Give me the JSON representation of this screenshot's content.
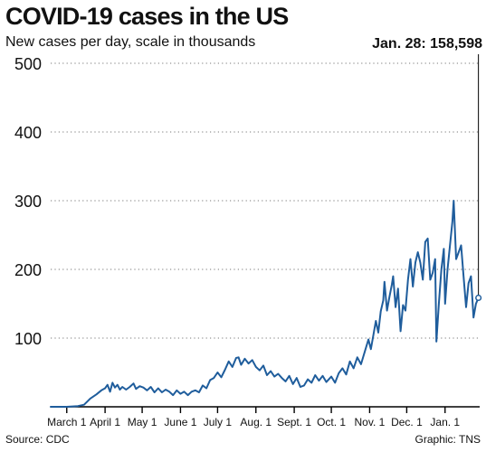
{
  "header": {
    "title": "COVID-19 cases in the US",
    "subtitle": "New cases per day, scale in thousands",
    "callout": "Jan. 28: 158,598"
  },
  "footer": {
    "source": "Source: CDC",
    "credit": "Graphic: TNS"
  },
  "colors": {
    "line": "#1f5d9c",
    "grid": "#777777",
    "axis": "#000000",
    "text": "#111111"
  },
  "chart_data": {
    "type": "line",
    "title": "COVID-19 cases in the US",
    "subtitle": "New cases per day, scale in thousands",
    "xlabel": "",
    "ylabel": "",
    "ylim": [
      0,
      500
    ],
    "xlim": [
      "2020-02-17",
      "2021-01-29"
    ],
    "grid": true,
    "yticks": [
      "100",
      "200",
      "300",
      "400",
      "500"
    ],
    "xticks": [
      {
        "label": "March 1",
        "date": "2020-03-01"
      },
      {
        "label": "April 1",
        "date": "2020-04-01"
      },
      {
        "label": "May 1",
        "date": "2020-05-01"
      },
      {
        "label": "June 1",
        "date": "2020-06-01"
      },
      {
        "label": "July 1",
        "date": "2020-07-01"
      },
      {
        "label": "Aug. 1",
        "date": "2020-08-01"
      },
      {
        "label": "Sept. 1",
        "date": "2020-09-01"
      },
      {
        "label": "Oct. 1",
        "date": "2020-10-01"
      },
      {
        "label": "Nov. 1",
        "date": "2020-11-01"
      },
      {
        "label": "Dec. 1",
        "date": "2020-12-01"
      },
      {
        "label": "Jan. 1",
        "date": "2021-01-01"
      }
    ],
    "series": [
      {
        "name": "",
        "points": [
          [
            "2020-02-17",
            0
          ],
          [
            "2020-03-01",
            0
          ],
          [
            "2020-03-10",
            1
          ],
          [
            "2020-03-15",
            3
          ],
          [
            "2020-03-20",
            12
          ],
          [
            "2020-03-25",
            18
          ],
          [
            "2020-03-29",
            24
          ],
          [
            "2020-04-01",
            27
          ],
          [
            "2020-04-03",
            32
          ],
          [
            "2020-04-05",
            22
          ],
          [
            "2020-04-07",
            35
          ],
          [
            "2020-04-09",
            28
          ],
          [
            "2020-04-11",
            32
          ],
          [
            "2020-04-13",
            25
          ],
          [
            "2020-04-15",
            29
          ],
          [
            "2020-04-18",
            25
          ],
          [
            "2020-04-21",
            29
          ],
          [
            "2020-04-24",
            34
          ],
          [
            "2020-04-26",
            26
          ],
          [
            "2020-04-29",
            30
          ],
          [
            "2020-05-02",
            28
          ],
          [
            "2020-05-05",
            24
          ],
          [
            "2020-05-08",
            29
          ],
          [
            "2020-05-11",
            21
          ],
          [
            "2020-05-14",
            27
          ],
          [
            "2020-05-17",
            21
          ],
          [
            "2020-05-20",
            25
          ],
          [
            "2020-05-23",
            22
          ],
          [
            "2020-05-26",
            17
          ],
          [
            "2020-05-29",
            24
          ],
          [
            "2020-06-01",
            19
          ],
          [
            "2020-06-04",
            22
          ],
          [
            "2020-06-07",
            17
          ],
          [
            "2020-06-10",
            22
          ],
          [
            "2020-06-13",
            24
          ],
          [
            "2020-06-16",
            21
          ],
          [
            "2020-06-19",
            31
          ],
          [
            "2020-06-22",
            27
          ],
          [
            "2020-06-25",
            39
          ],
          [
            "2020-06-28",
            42
          ],
          [
            "2020-07-01",
            50
          ],
          [
            "2020-07-04",
            43
          ],
          [
            "2020-07-07",
            54
          ],
          [
            "2020-07-10",
            66
          ],
          [
            "2020-07-13",
            58
          ],
          [
            "2020-07-16",
            71
          ],
          [
            "2020-07-18",
            72
          ],
          [
            "2020-07-20",
            61
          ],
          [
            "2020-07-23",
            70
          ],
          [
            "2020-07-26",
            63
          ],
          [
            "2020-07-29",
            68
          ],
          [
            "2020-08-01",
            58
          ],
          [
            "2020-08-04",
            53
          ],
          [
            "2020-08-07",
            60
          ],
          [
            "2020-08-10",
            46
          ],
          [
            "2020-08-13",
            52
          ],
          [
            "2020-08-16",
            44
          ],
          [
            "2020-08-19",
            48
          ],
          [
            "2020-08-22",
            42
          ],
          [
            "2020-08-25",
            37
          ],
          [
            "2020-08-28",
            45
          ],
          [
            "2020-08-31",
            33
          ],
          [
            "2020-09-03",
            42
          ],
          [
            "2020-09-06",
            29
          ],
          [
            "2020-09-09",
            31
          ],
          [
            "2020-09-12",
            40
          ],
          [
            "2020-09-15",
            35
          ],
          [
            "2020-09-18",
            46
          ],
          [
            "2020-09-21",
            38
          ],
          [
            "2020-09-24",
            45
          ],
          [
            "2020-09-27",
            36
          ],
          [
            "2020-10-01",
            44
          ],
          [
            "2020-10-04",
            35
          ],
          [
            "2020-10-07",
            49
          ],
          [
            "2020-10-10",
            56
          ],
          [
            "2020-10-13",
            47
          ],
          [
            "2020-10-16",
            66
          ],
          [
            "2020-10-19",
            56
          ],
          [
            "2020-10-22",
            72
          ],
          [
            "2020-10-25",
            62
          ],
          [
            "2020-10-28",
            80
          ],
          [
            "2020-10-31",
            98
          ],
          [
            "2020-11-02",
            84
          ],
          [
            "2020-11-04",
            104
          ],
          [
            "2020-11-06",
            125
          ],
          [
            "2020-11-08",
            108
          ],
          [
            "2020-11-10",
            139
          ],
          [
            "2020-11-12",
            155
          ],
          [
            "2020-11-13",
            182
          ],
          [
            "2020-11-15",
            140
          ],
          [
            "2020-11-17",
            160
          ],
          [
            "2020-11-19",
            178
          ],
          [
            "2020-11-20",
            190
          ],
          [
            "2020-11-22",
            145
          ],
          [
            "2020-11-24",
            172
          ],
          [
            "2020-11-26",
            110
          ],
          [
            "2020-11-28",
            148
          ],
          [
            "2020-11-30",
            140
          ],
          [
            "2020-12-02",
            185
          ],
          [
            "2020-12-04",
            215
          ],
          [
            "2020-12-06",
            175
          ],
          [
            "2020-12-08",
            210
          ],
          [
            "2020-12-10",
            225
          ],
          [
            "2020-12-12",
            210
          ],
          [
            "2020-12-14",
            185
          ],
          [
            "2020-12-16",
            240
          ],
          [
            "2020-12-18",
            245
          ],
          [
            "2020-12-20",
            185
          ],
          [
            "2020-12-22",
            195
          ],
          [
            "2020-12-24",
            215
          ],
          [
            "2020-12-25",
            95
          ],
          [
            "2020-12-27",
            150
          ],
          [
            "2020-12-29",
            200
          ],
          [
            "2020-12-31",
            230
          ],
          [
            "2021-01-01",
            150
          ],
          [
            "2021-01-03",
            200
          ],
          [
            "2021-01-05",
            235
          ],
          [
            "2021-01-07",
            270
          ],
          [
            "2021-01-08",
            300
          ],
          [
            "2021-01-10",
            215
          ],
          [
            "2021-01-12",
            225
          ],
          [
            "2021-01-14",
            235
          ],
          [
            "2021-01-16",
            190
          ],
          [
            "2021-01-18",
            145
          ],
          [
            "2021-01-20",
            180
          ],
          [
            "2021-01-22",
            190
          ],
          [
            "2021-01-24",
            130
          ],
          [
            "2021-01-26",
            150
          ],
          [
            "2021-01-28",
            158.598
          ]
        ]
      }
    ],
    "annotation": {
      "text": "Jan. 28: 158,598",
      "date": "2021-01-28",
      "value": 158.598
    }
  }
}
